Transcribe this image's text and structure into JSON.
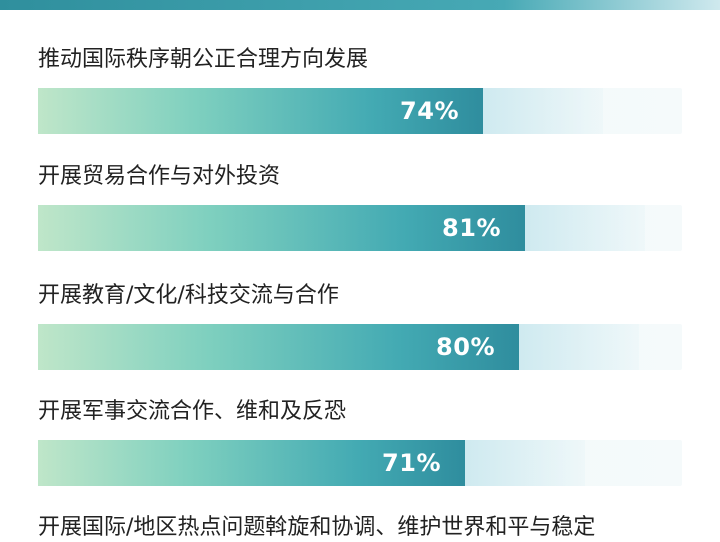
{
  "chart_data": {
    "type": "bar",
    "orientation": "horizontal",
    "categories": [
      "推动国际秩序朝公正合理方向发展",
      "开展贸易合作与对外投资",
      "开展教育/文化/科技交流与合作",
      "开展军事交流合作、维和及反恐",
      "开展国际/地区热点问题斡旋和协调、维护世界和平与稳定"
    ],
    "values": [
      74,
      81,
      80,
      71,
      null
    ],
    "value_labels": [
      "74%",
      "81%",
      "80%",
      "71%",
      ""
    ],
    "xlim": [
      0,
      100
    ],
    "grid": false,
    "legend": "none"
  },
  "colors": {
    "bar_start": "#bfe6c9",
    "bar_end": "#2f8d9e",
    "track": "#eef7f8",
    "top_band": "#2f8f9d"
  }
}
